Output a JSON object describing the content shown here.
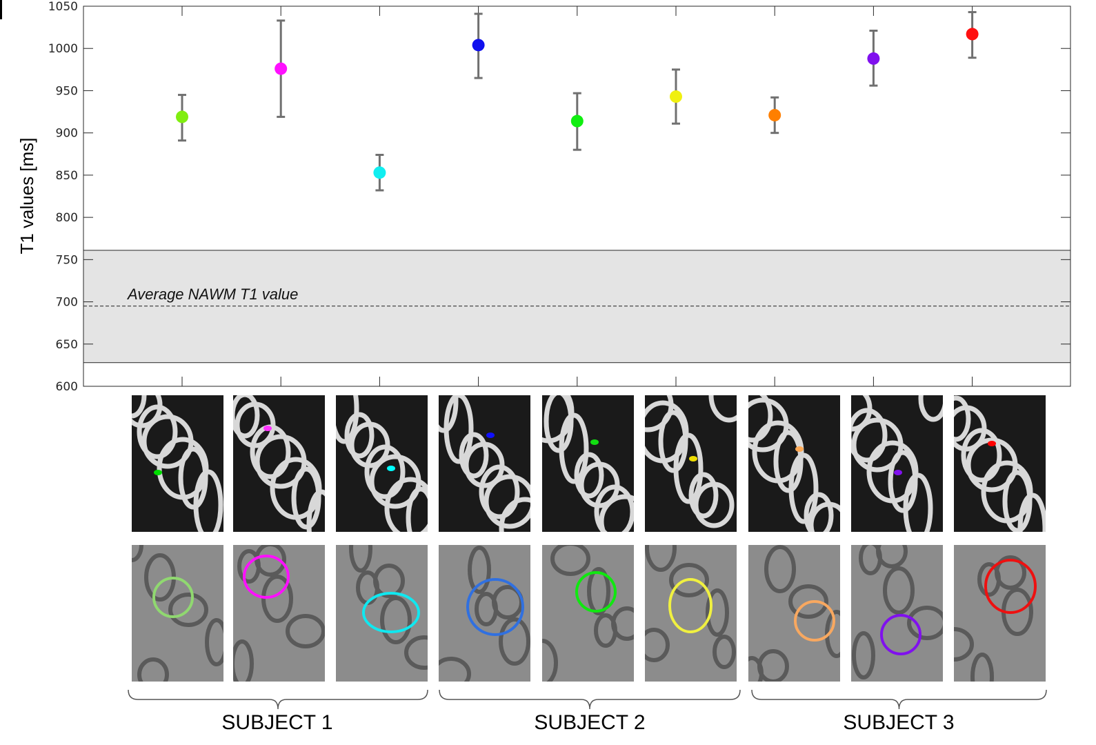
{
  "chart_data": {
    "type": "scatter",
    "ylabel": "T1 values [ms]",
    "ylim": [
      600,
      1050
    ],
    "yticks": [
      "600",
      "650",
      "700",
      "750",
      "800",
      "850",
      "900",
      "950",
      "1000",
      "1050"
    ],
    "grid": false,
    "points": [
      {
        "x": 1,
        "y": 919,
        "err_low": 891,
        "err_high": 945,
        "color": "#80ee10"
      },
      {
        "x": 2,
        "y": 976,
        "err_low": 919,
        "err_high": 1033,
        "color": "#ff10ff"
      },
      {
        "x": 3,
        "y": 853,
        "err_low": 832,
        "err_high": 874,
        "color": "#10eef0"
      },
      {
        "x": 4,
        "y": 1004,
        "err_low": 965,
        "err_high": 1041,
        "color": "#1010ee"
      },
      {
        "x": 5,
        "y": 914,
        "err_low": 880,
        "err_high": 947,
        "color": "#10ee10"
      },
      {
        "x": 6,
        "y": 943,
        "err_low": 911,
        "err_high": 975,
        "color": "#f0f010"
      },
      {
        "x": 7,
        "y": 921,
        "err_low": 900,
        "err_high": 942,
        "color": "#ff7f00"
      },
      {
        "x": 8,
        "y": 988,
        "err_low": 956,
        "err_high": 1021,
        "color": "#8010ee"
      },
      {
        "x": 9,
        "y": 1017,
        "err_low": 989,
        "err_high": 1043,
        "color": "#ff1010"
      }
    ],
    "nawm_band": {
      "low": 628,
      "high": 761,
      "mean": 695,
      "label": "Average NAWM T1 value"
    }
  },
  "panels": {
    "top_marker_colors": [
      "#00dd00",
      "#ff33ff",
      "#00ffff",
      "#1010ff",
      "#11dd11",
      "#eedd00",
      "#ffaa55",
      "#8010ee",
      "#ff0000"
    ],
    "circle_colors": [
      "#90d870",
      "#ff10ff",
      "#10e8f0",
      "#3070e0",
      "#10e810",
      "#f0f040",
      "#f8a860",
      "#8010ee",
      "#ee1010"
    ]
  },
  "subjects": [
    "SUBJECT 1",
    "SUBJECT 2",
    "SUBJECT 3"
  ]
}
